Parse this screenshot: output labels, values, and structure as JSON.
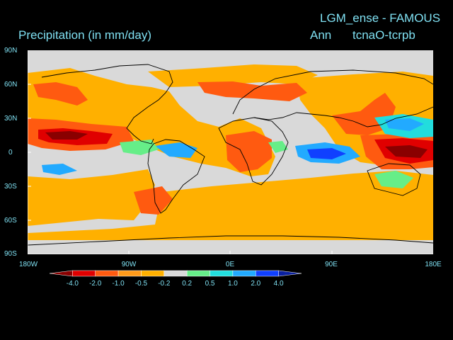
{
  "header": {
    "run_title": "LGM_ense - FAMOUS",
    "variable_title": "Precipitation (in mm/day)",
    "season": "Ann",
    "experiment": "tcnaO-tcrpb"
  },
  "axes": {
    "lat_labels": [
      "90N",
      "60N",
      "30N",
      "0",
      "30S",
      "60S",
      "90S"
    ],
    "lon_labels": [
      "180W",
      "90W",
      "0E",
      "90E",
      "180E"
    ]
  },
  "colorbar": {
    "labels": [
      "-4.0",
      "-2.0",
      "-1.0",
      "-0.5",
      "-0.2",
      "0.2",
      "0.5",
      "1.0",
      "2.0",
      "4.0"
    ],
    "colors": [
      "#8a0000",
      "#e00000",
      "#ff5a10",
      "#ff9a1a",
      "#ffb000",
      "#d9d9d9",
      "#66ee88",
      "#22dddd",
      "#22aaff",
      "#1040ff",
      "#0a20a0"
    ]
  },
  "colors": {
    "background": "#000000",
    "text": "#7fe0f2",
    "neutral": "#d9d9d9"
  }
}
